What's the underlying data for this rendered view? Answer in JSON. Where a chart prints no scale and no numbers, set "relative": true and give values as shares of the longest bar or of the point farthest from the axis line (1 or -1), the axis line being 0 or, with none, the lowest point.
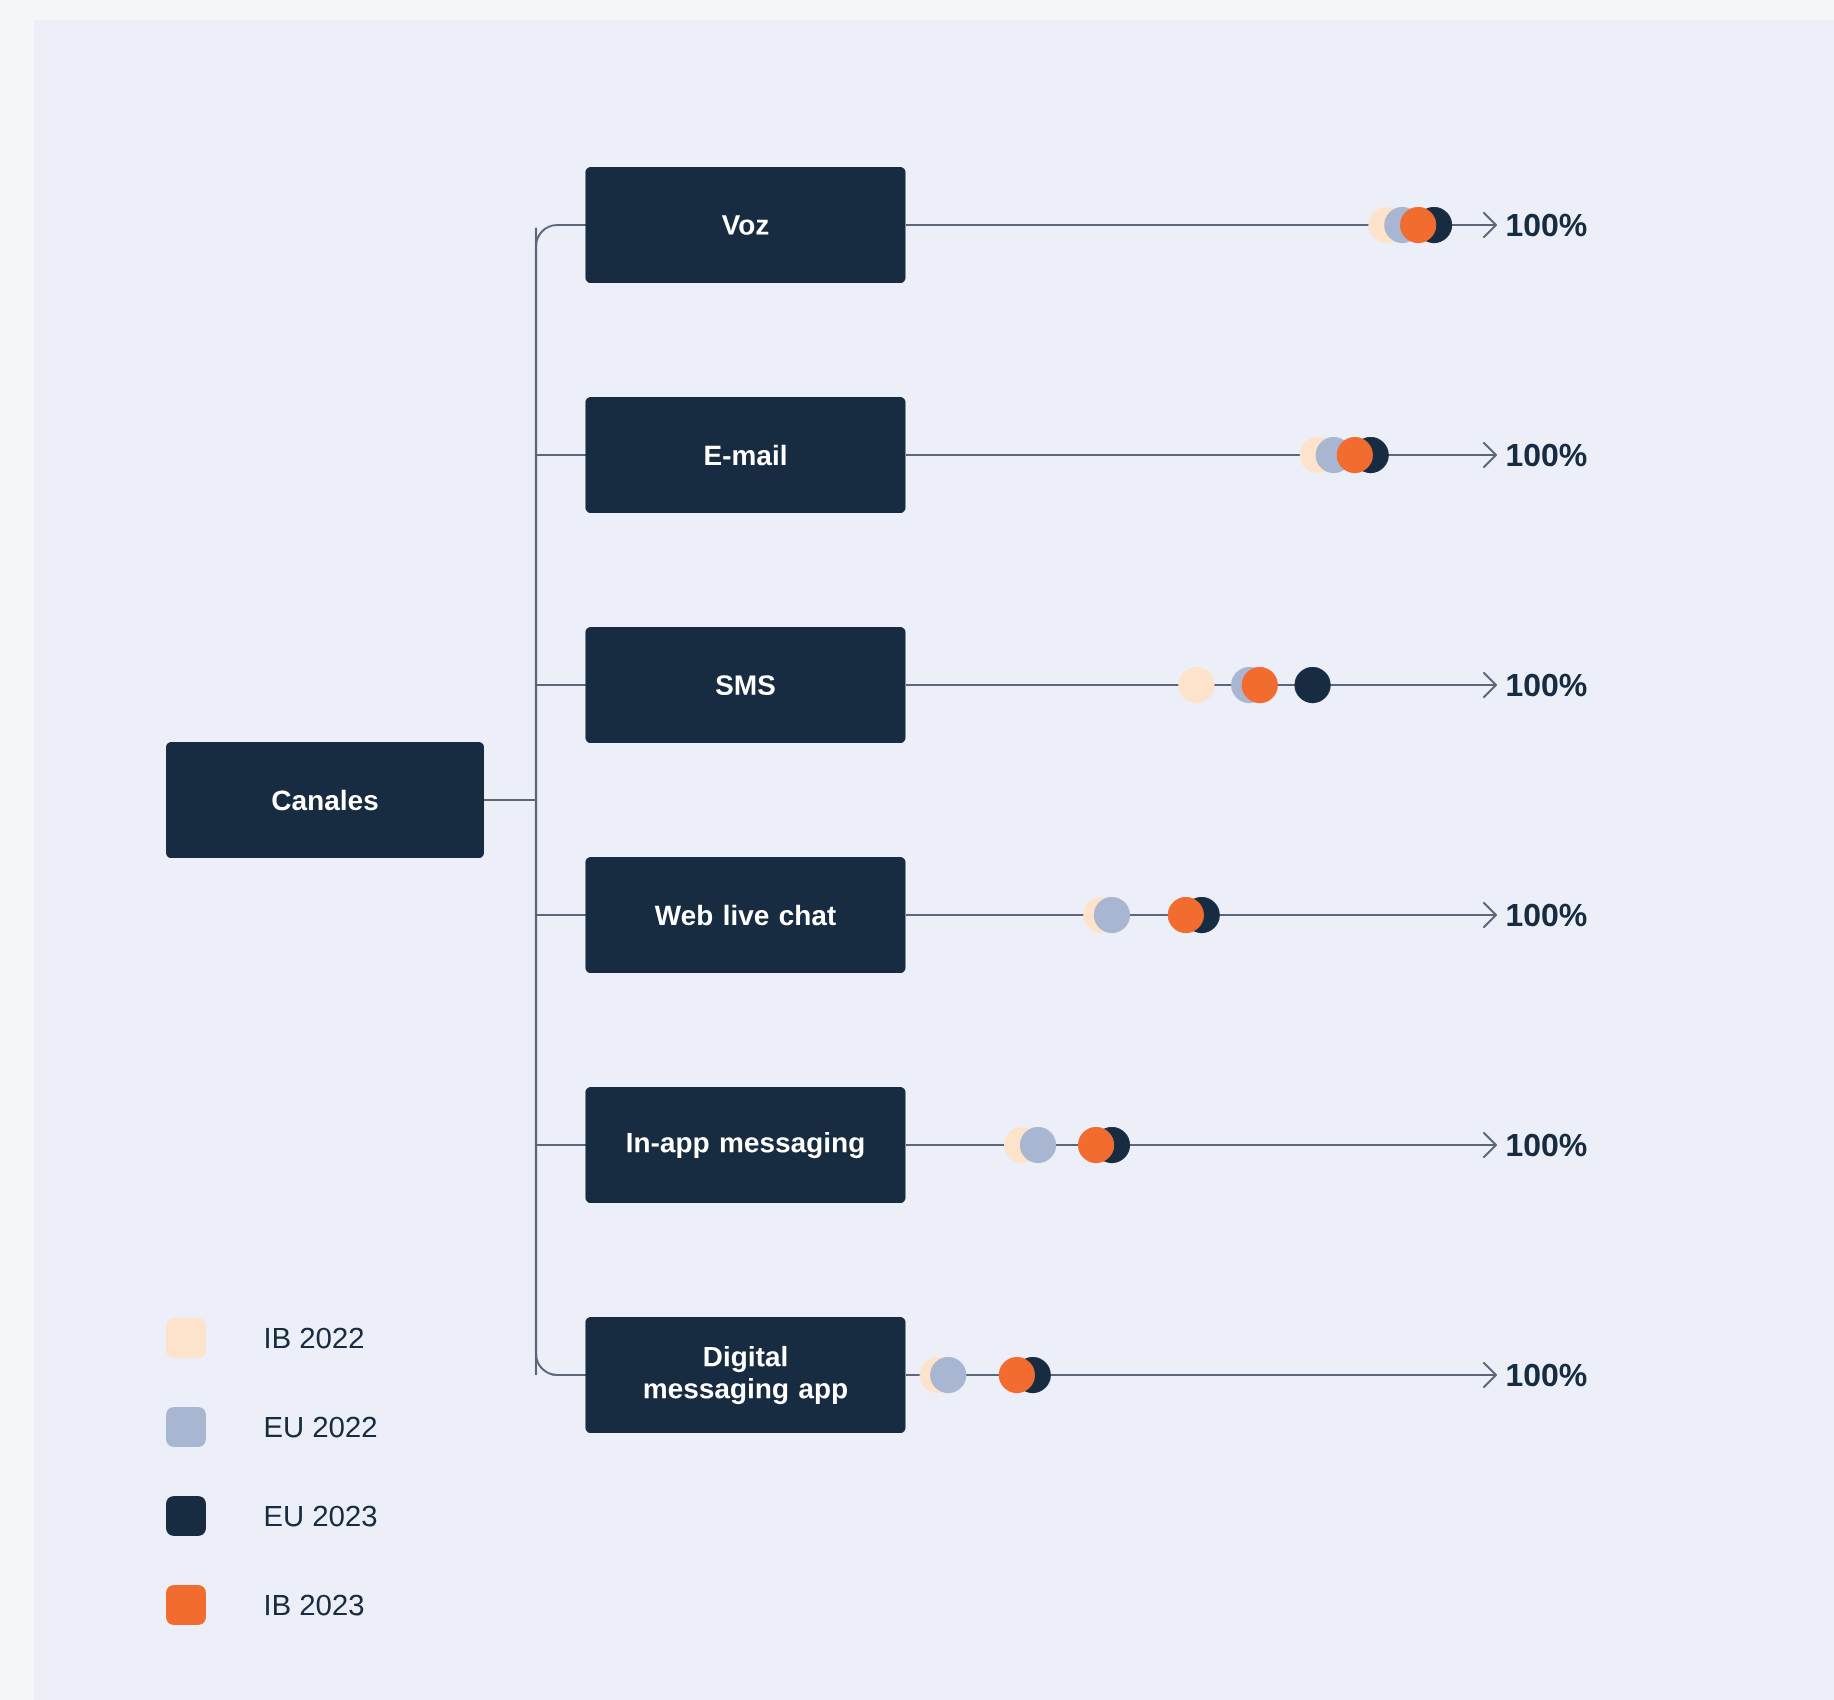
{
  "chart_data": {
    "type": "scatter",
    "orientation": "horizontal",
    "relative": true,
    "title": "Canales",
    "categories": [
      "Voz",
      "E-mail",
      "SMS",
      "Web live chat",
      "In-app messaging",
      "Digital messaging app"
    ],
    "series": [
      {
        "name": "IB 2022",
        "color": "#fde3cc",
        "values": [
          0.91,
          0.78,
          0.55,
          0.37,
          0.22,
          0.06
        ]
      },
      {
        "name": "EU 2022",
        "color": "#a9b6d1",
        "values": [
          0.94,
          0.81,
          0.65,
          0.39,
          0.25,
          0.08
        ]
      },
      {
        "name": "EU 2023",
        "color": "#172b41",
        "values": [
          1,
          0.88,
          0.77,
          0.56,
          0.39,
          0.24
        ]
      },
      {
        "name": "IB 2023",
        "color": "#f26b2f",
        "values": [
          0.97,
          0.85,
          0.67,
          0.53,
          0.36,
          0.21
        ]
      }
    ],
    "annotations": [
      "100%",
      "100%",
      "100%",
      "100%",
      "100%",
      "100%"
    ],
    "legend": "bottom left",
    "marker": "circle",
    "grid": "y"
  }
}
